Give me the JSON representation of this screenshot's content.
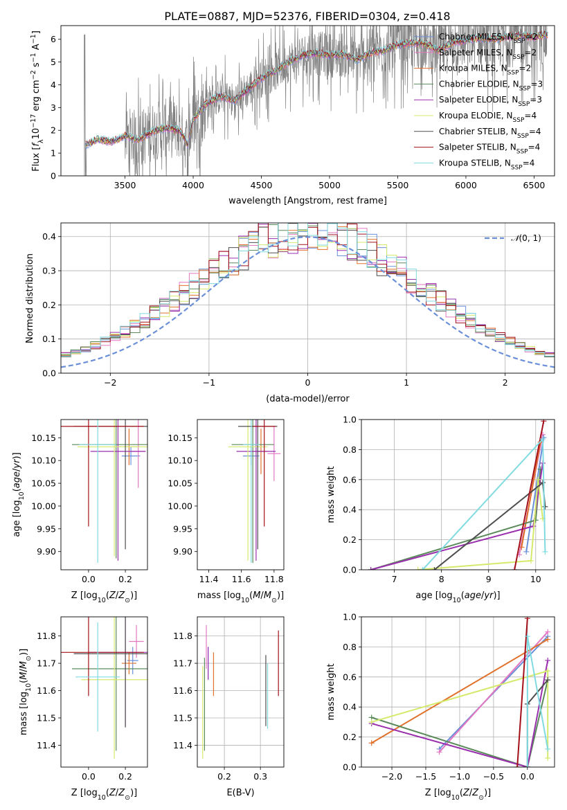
{
  "colors": {
    "Chabrier MILES": "#6a8fd8",
    "Salpeter MILES": "#e377c2",
    "Kroupa MILES": "#e0712b",
    "Chabrier ELODIE": "#5a8a5a",
    "Salpeter ELODIE": "#9a2fae",
    "Kroupa ELODIE": "#d4ea6b",
    "Chabrier STELIB": "#4d4d4d",
    "Salpeter STELIB": "#a3101a",
    "Kroupa STELIB": "#7fdbe0",
    "data": "#808080",
    "normal": "#6a8fd8"
  },
  "chart_data": [
    {
      "type": "line",
      "title": "PLATE=0887, MJD=52376, FIBERID=0304, z=0.418",
      "xlabel": "wavelength [Angstrom, rest frame]",
      "ylabel": "Flux [f_λ 10^-17 erg cm^-2 s^-1 A^-1]",
      "xlim": [
        3030,
        6650
      ],
      "ylim": [
        0,
        6.6
      ],
      "xticks": [
        3500,
        4000,
        4500,
        5000,
        5500,
        6000,
        6500
      ],
      "yticks": [
        0,
        1,
        2,
        3,
        4,
        5,
        6
      ],
      "legend_position": "top-right",
      "legend": [
        {
          "name": "Chabrier MILES",
          "label": "Chabrier MILES, N",
          "sub": "SSP",
          "suffix": "=2"
        },
        {
          "name": "Salpeter MILES",
          "label": "Salpeter MILES, N",
          "sub": "SSP",
          "suffix": "=2"
        },
        {
          "name": "Kroupa MILES",
          "label": "Kroupa MILES, N",
          "sub": "SSP",
          "suffix": "=2"
        },
        {
          "name": "Chabrier ELODIE",
          "label": "Chabrier ELODIE, N",
          "sub": "SSP",
          "suffix": "=3"
        },
        {
          "name": "Salpeter ELODIE",
          "label": "Salpeter ELODIE, N",
          "sub": "SSP",
          "suffix": "=3"
        },
        {
          "name": "Kroupa ELODIE",
          "label": "Kroupa ELODIE, N",
          "sub": "SSP",
          "suffix": "=4"
        },
        {
          "name": "Chabrier STELIB",
          "label": "Chabrier STELIB, N",
          "sub": "SSP",
          "suffix": "=4"
        },
        {
          "name": "Salpeter STELIB",
          "label": "Salpeter STELIB, N",
          "sub": "SSP",
          "suffix": "=4"
        },
        {
          "name": "Kroupa STELIB",
          "label": "Kroupa STELIB, N",
          "sub": "SSP",
          "suffix": "=4"
        }
      ],
      "model_continuum": [
        [
          3210,
          1.35
        ],
        [
          3300,
          1.6
        ],
        [
          3400,
          1.5
        ],
        [
          3500,
          1.75
        ],
        [
          3600,
          1.6
        ],
        [
          3700,
          1.95
        ],
        [
          3800,
          2.1
        ],
        [
          3900,
          2.0
        ],
        [
          3960,
          1.4
        ],
        [
          4000,
          2.5
        ],
        [
          4100,
          3.2
        ],
        [
          4200,
          3.5
        ],
        [
          4300,
          3.3
        ],
        [
          4400,
          3.8
        ],
        [
          4500,
          4.3
        ],
        [
          4600,
          4.6
        ],
        [
          4700,
          5.0
        ],
        [
          4800,
          5.3
        ],
        [
          4900,
          5.4
        ],
        [
          5000,
          5.3
        ],
        [
          5100,
          5.35
        ],
        [
          5200,
          5.1
        ],
        [
          5300,
          5.4
        ],
        [
          5400,
          5.5
        ],
        [
          5500,
          5.75
        ],
        [
          5600,
          5.85
        ],
        [
          5700,
          5.8
        ],
        [
          5800,
          5.5
        ],
        [
          5900,
          5.85
        ],
        [
          6000,
          5.95
        ],
        [
          6100,
          6.05
        ],
        [
          6200,
          6.0
        ],
        [
          6300,
          6.1
        ],
        [
          6400,
          6.15
        ],
        [
          6500,
          6.1
        ],
        [
          6580,
          6.2
        ]
      ],
      "data_range": [
        3200,
        6600
      ]
    },
    {
      "type": "histogram",
      "xlabel": "(data-model)/error",
      "ylabel": "Normed distribution",
      "xlim": [
        -2.5,
        2.5
      ],
      "ylim": [
        0,
        0.44
      ],
      "xticks": [
        -2,
        -1,
        0,
        1,
        2
      ],
      "yticks": [
        0.0,
        0.1,
        0.2,
        0.3,
        0.4
      ],
      "grid": true,
      "bin_width": 0.1,
      "legend": {
        "label": "N(0,1)",
        "position": "top-right"
      }
    },
    {
      "type": "scatter",
      "xlabel": "Z [log10(Z/Z_sun)]",
      "ylabel": "age [log10(age/yr)]",
      "xlim": [
        -0.15,
        0.32
      ],
      "ylim": [
        9.86,
        10.19
      ],
      "xticks": [
        0.0,
        0.2
      ],
      "yticks": [
        9.9,
        9.95,
        10.0,
        10.05,
        10.1,
        10.15
      ],
      "points": [
        {
          "name": "Chabrier MILES",
          "x": 0.23,
          "y": 10.11,
          "xerr": 0.05,
          "yerr": 0.02
        },
        {
          "name": "Salpeter MILES",
          "x": 0.27,
          "y": 10.12,
          "xerr": 0.04,
          "yerr": 0.08
        },
        {
          "name": "Kroupa MILES",
          "x": 0.22,
          "y": 10.13,
          "xerr": 0.06,
          "yerr": 0.04
        },
        {
          "name": "Chabrier ELODIE",
          "x": 0.15,
          "y": 10.135,
          "xerr": 0.24,
          "yerr": 0.25
        },
        {
          "name": "Salpeter ELODIE",
          "x": 0.16,
          "y": 10.12,
          "xerr": 0.15,
          "yerr": 0.24
        },
        {
          "name": "Kroupa ELODIE",
          "x": 0.14,
          "y": 10.13,
          "xerr": 0.2,
          "yerr": 0.24
        },
        {
          "name": "Chabrier STELIB",
          "x": 0.2,
          "y": 10.175,
          "xerr": 0.28,
          "yerr": 0.27
        },
        {
          "name": "Salpeter STELIB",
          "x": 0.0,
          "y": 10.175,
          "xerr": 0.3,
          "yerr": 0.22
        },
        {
          "name": "Kroupa STELIB",
          "x": 0.05,
          "y": 10.135,
          "xerr": 0.1,
          "yerr": 0.26
        }
      ]
    },
    {
      "type": "scatter",
      "xlabel": "mass [log10(M/M_sun)]",
      "ylabel": "",
      "xlim": [
        11.33,
        11.86
      ],
      "ylim": [
        9.86,
        10.19
      ],
      "xticks": [
        11.4,
        11.6,
        11.8
      ],
      "yticks": [
        9.9,
        9.95,
        10.0,
        10.05,
        10.1,
        10.15
      ],
      "points": [
        {
          "name": "Chabrier MILES",
          "x": 11.66,
          "y": 10.11,
          "xerr": 0.05,
          "yerr": 0.02
        },
        {
          "name": "Salpeter MILES",
          "x": 11.8,
          "y": 10.115,
          "xerr": 0.04,
          "yerr": 0.06
        },
        {
          "name": "Kroupa MILES",
          "x": 11.72,
          "y": 10.12,
          "xerr": 0.04,
          "yerr": 0.05
        },
        {
          "name": "Chabrier ELODIE",
          "x": 11.67,
          "y": 10.135,
          "xerr": 0.13,
          "yerr": 0.26
        },
        {
          "name": "Salpeter ELODIE",
          "x": 11.69,
          "y": 10.12,
          "xerr": 0.12,
          "yerr": 0.24
        },
        {
          "name": "Kroupa ELODIE",
          "x": 11.64,
          "y": 10.13,
          "xerr": 0.12,
          "yerr": 0.25
        },
        {
          "name": "Chabrier STELIB",
          "x": 11.7,
          "y": 10.175,
          "xerr": 0.12,
          "yerr": 0.27
        },
        {
          "name": "Salpeter STELIB",
          "x": 11.74,
          "y": 10.175,
          "xerr": 0.07,
          "yerr": 0.22
        },
        {
          "name": "Kroupa STELIB",
          "x": 11.66,
          "y": 10.135,
          "xerr": 0.05,
          "yerr": 0.26
        }
      ]
    },
    {
      "type": "scatter",
      "xlabel": "age [log10(age/yr)]",
      "ylabel": "mass weight",
      "xlim": [
        6.3,
        10.4
      ],
      "ylim": [
        0,
        1
      ],
      "xticks": [
        7,
        8,
        9,
        10
      ],
      "yticks": [
        0.0,
        0.2,
        0.4,
        0.6,
        0.8,
        1.0
      ],
      "grid": true,
      "lines": [
        {
          "name": "Chabrier MILES",
          "points": [
            [
              9.8,
              0.12
            ],
            [
              10.17,
              0.88
            ]
          ]
        },
        {
          "name": "Salpeter MILES",
          "points": [
            [
              9.65,
              0.1
            ],
            [
              10.15,
              0.9
            ]
          ]
        },
        {
          "name": "Kroupa MILES",
          "points": [
            [
              9.7,
              0.15
            ],
            [
              10.1,
              0.85
            ]
          ]
        },
        {
          "name": "Chabrier ELODIE",
          "points": [
            [
              6.5,
              0.0
            ],
            [
              10.0,
              0.33
            ],
            [
              10.1,
              0.67
            ]
          ]
        },
        {
          "name": "Salpeter ELODIE",
          "points": [
            [
              6.5,
              0.0
            ],
            [
              9.95,
              0.29
            ],
            [
              10.15,
              0.71
            ]
          ]
        },
        {
          "name": "Kroupa ELODIE",
          "points": [
            [
              7.5,
              0.0
            ],
            [
              9.9,
              0.06
            ],
            [
              10.05,
              0.6
            ],
            [
              10.15,
              0.34
            ]
          ]
        },
        {
          "name": "Chabrier STELIB",
          "points": [
            [
              7.85,
              0.0
            ],
            [
              10.15,
              0.58
            ],
            [
              10.2,
              0.42
            ]
          ]
        },
        {
          "name": "Salpeter STELIB",
          "points": [
            [
              9.55,
              0.0
            ],
            [
              10.17,
              0.99
            ]
          ]
        },
        {
          "name": "Kroupa STELIB",
          "points": [
            [
              7.6,
              0.0
            ],
            [
              10.15,
              0.87
            ],
            [
              10.2,
              0.12
            ]
          ]
        }
      ]
    },
    {
      "type": "scatter",
      "xlabel": "Z [log10(Z/Z_sun)]",
      "ylabel": "mass [log10(M/M_sun)]",
      "xlim": [
        -0.15,
        0.32
      ],
      "ylim": [
        11.32,
        11.87
      ],
      "xticks": [
        0.0,
        0.2
      ],
      "yticks": [
        11.4,
        11.5,
        11.6,
        11.7,
        11.8
      ],
      "points": [
        {
          "name": "Chabrier MILES",
          "x": 0.24,
          "y": 11.71,
          "xerr": 0.03,
          "yerr": 0.05
        },
        {
          "name": "Salpeter MILES",
          "x": 0.26,
          "y": 11.78,
          "xerr": 0.04,
          "yerr": 0.06
        },
        {
          "name": "Kroupa MILES",
          "x": 0.22,
          "y": 11.7,
          "xerr": 0.04,
          "yerr": 0.04
        },
        {
          "name": "Chabrier ELODIE",
          "x": 0.15,
          "y": 11.68,
          "xerr": 0.24,
          "yerr": 0.3
        },
        {
          "name": "Salpeter ELODIE",
          "x": 0.2,
          "y": 11.74,
          "xerr": 0.2,
          "yerr": 0.27
        },
        {
          "name": "Kroupa ELODIE",
          "x": 0.14,
          "y": 11.64,
          "xerr": 0.18,
          "yerr": 0.29
        },
        {
          "name": "Chabrier STELIB",
          "x": 0.2,
          "y": 11.735,
          "xerr": 0.28,
          "yerr": 0.27
        },
        {
          "name": "Salpeter STELIB",
          "x": 0.0,
          "y": 11.74,
          "xerr": 0.3,
          "yerr": 0.16
        },
        {
          "name": "Kroupa STELIB",
          "x": 0.05,
          "y": 11.65,
          "xerr": 0.12,
          "yerr": 0.2
        }
      ]
    },
    {
      "type": "scatter",
      "xlabel": "E(B-V)",
      "ylabel": "",
      "xlim": [
        0.125,
        0.365
      ],
      "ylim": [
        11.32,
        11.87
      ],
      "xticks": [
        0.2,
        0.3
      ],
      "yticks": [
        11.4,
        11.5,
        11.6,
        11.7,
        11.8
      ],
      "grid": true,
      "points": [
        {
          "name": "Chabrier MILES",
          "x": 0.155,
          "y": 11.7,
          "yerr": 0.06
        },
        {
          "name": "Salpeter MILES",
          "x": 0.15,
          "y": 11.76,
          "yerr": 0.08
        },
        {
          "name": "Kroupa MILES",
          "x": 0.17,
          "y": 11.66,
          "yerr": 0.08
        },
        {
          "name": "Chabrier ELODIE",
          "x": 0.145,
          "y": 11.55,
          "yerr": 0.17
        },
        {
          "name": "Salpeter ELODIE",
          "x": 0.155,
          "y": 11.7,
          "yerr": 0.06
        },
        {
          "name": "Kroupa ELODIE",
          "x": 0.14,
          "y": 11.52,
          "yerr": 0.17
        },
        {
          "name": "Chabrier STELIB",
          "x": 0.315,
          "y": 11.6,
          "yerr": 0.13
        },
        {
          "name": "Salpeter STELIB",
          "x": 0.35,
          "y": 11.7,
          "yerr": 0.12
        },
        {
          "name": "Kroupa STELIB",
          "x": 0.32,
          "y": 11.58,
          "yerr": 0.12
        }
      ]
    },
    {
      "type": "scatter",
      "xlabel": "Z [log10(Z/Z_sun)]",
      "ylabel": "mass weight",
      "xlim": [
        -2.45,
        0.4
      ],
      "ylim": [
        0,
        1
      ],
      "xticks": [
        -2.0,
        -1.5,
        -1.0,
        -0.5,
        0.0
      ],
      "yticks": [
        0.0,
        0.2,
        0.4,
        0.6,
        0.8,
        1.0
      ],
      "grid": true,
      "lines": [
        {
          "name": "Chabrier MILES",
          "points": [
            [
              -1.3,
              0.12
            ],
            [
              0.3,
              0.87
            ]
          ]
        },
        {
          "name": "Salpeter MILES",
          "points": [
            [
              -1.3,
              0.1
            ],
            [
              0.3,
              0.9
            ]
          ]
        },
        {
          "name": "Kroupa MILES",
          "points": [
            [
              -2.3,
              0.16
            ],
            [
              0.3,
              0.85
            ]
          ]
        },
        {
          "name": "Chabrier ELODIE",
          "points": [
            [
              -2.3,
              0.33
            ],
            [
              0.0,
              0.0
            ],
            [
              0.3,
              0.58
            ]
          ]
        },
        {
          "name": "Salpeter ELODIE",
          "points": [
            [
              -2.3,
              0.29
            ],
            [
              0.0,
              0.0
            ],
            [
              0.3,
              0.71
            ]
          ]
        },
        {
          "name": "Kroupa ELODIE",
          "points": [
            [
              -2.3,
              0.3
            ],
            [
              0.3,
              0.64
            ],
            [
              0.3,
              0.06
            ]
          ]
        },
        {
          "name": "Chabrier STELIB",
          "points": [
            [
              0.0,
              0.0
            ],
            [
              0.0,
              0.42
            ],
            [
              0.3,
              0.58
            ]
          ]
        },
        {
          "name": "Salpeter STELIB",
          "points": [
            [
              -0.15,
              0.0
            ],
            [
              0.0,
              0.99
            ]
          ]
        },
        {
          "name": "Kroupa STELIB",
          "points": [
            [
              0.0,
              0.0
            ],
            [
              0.0,
              0.87
            ],
            [
              0.3,
              0.12
            ]
          ]
        }
      ]
    }
  ]
}
